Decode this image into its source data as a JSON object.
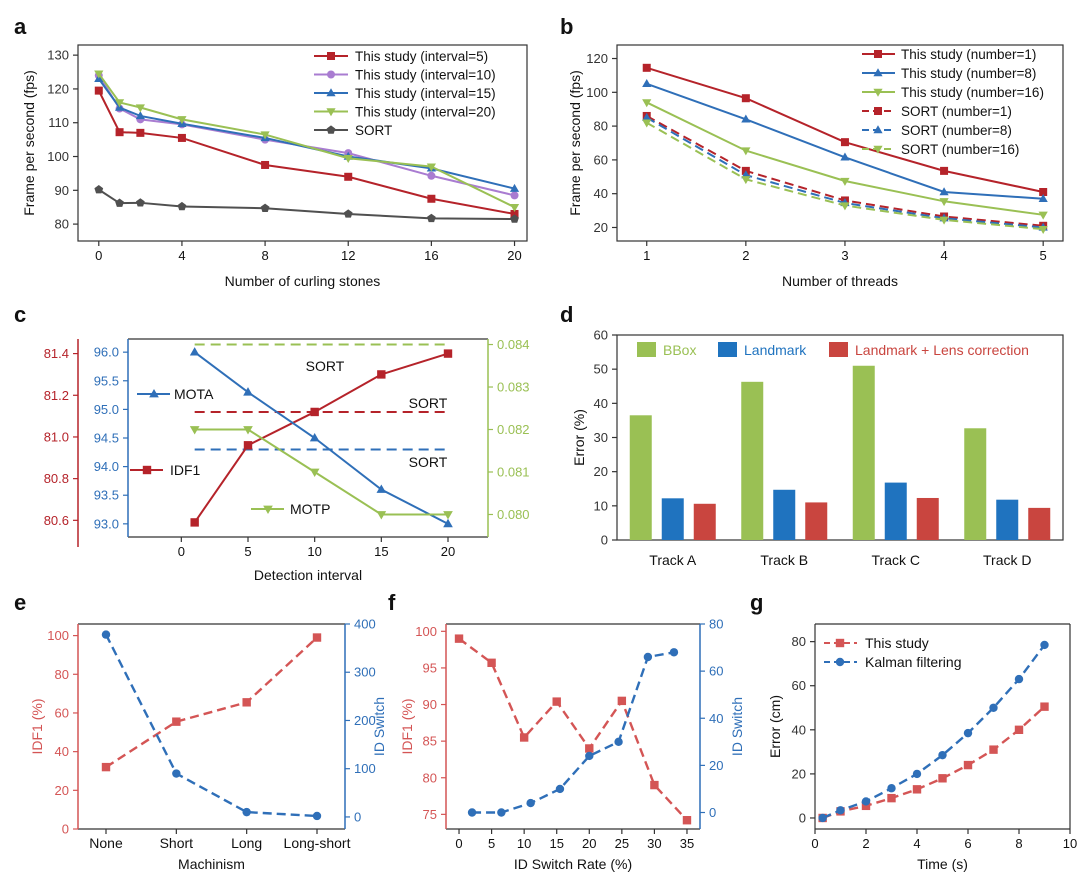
{
  "chart_data": [
    {
      "panel": "a",
      "type": "line",
      "xlabel": "Number of curling stones",
      "ylabel": "Frame per second (fps)",
      "xlim": [
        -1,
        20.6
      ],
      "ylim": [
        75,
        133
      ],
      "xticks": [
        0,
        4,
        8,
        12,
        16,
        20
      ],
      "yticks": [
        80,
        90,
        100,
        110,
        120,
        130
      ],
      "legend": "top-right",
      "series": [
        {
          "name": "This study (interval=5)",
          "color": "#b5232a",
          "marker": "square",
          "dash": false,
          "x": [
            0,
            1,
            2,
            4,
            8,
            12,
            16,
            20
          ],
          "y": [
            119.5,
            107.2,
            107.0,
            105.5,
            97.5,
            94.0,
            87.5,
            83.0
          ]
        },
        {
          "name": "This study (interval=10)",
          "color": "#a97cd1",
          "marker": "circle",
          "dash": false,
          "x": [
            0,
            1,
            2,
            4,
            8,
            12,
            16,
            20
          ],
          "y": [
            124.0,
            114.2,
            111.0,
            109.5,
            105.0,
            101.0,
            94.3,
            88.5
          ]
        },
        {
          "name": "This study (interval=15)",
          "color": "#2f6fb8",
          "marker": "triangle-up",
          "dash": false,
          "x": [
            0,
            1,
            2,
            4,
            8,
            12,
            16,
            20
          ],
          "y": [
            123.0,
            114.5,
            112.0,
            109.7,
            105.5,
            100.0,
            96.5,
            90.5
          ]
        },
        {
          "name": "This study (interval=20)",
          "color": "#9ac054",
          "marker": "triangle-down",
          "dash": false,
          "x": [
            0,
            1,
            2,
            4,
            8,
            12,
            16,
            20
          ],
          "y": [
            124.5,
            116.0,
            114.5,
            111.0,
            106.5,
            99.5,
            97.0,
            85.0
          ]
        },
        {
          "name": "SORT",
          "color": "#505050",
          "marker": "pentagon",
          "dash": false,
          "x": [
            0,
            1,
            2,
            4,
            8,
            12,
            16,
            20
          ],
          "y": [
            90.2,
            86.2,
            86.3,
            85.2,
            84.7,
            83.0,
            81.7,
            81.5
          ]
        }
      ]
    },
    {
      "panel": "b",
      "type": "line",
      "xlabel": "Number of threads",
      "ylabel": "Frame per second (fps)",
      "xlim": [
        0.7,
        5.2
      ],
      "ylim": [
        12,
        128
      ],
      "xticks": [
        1,
        2,
        3,
        4,
        5
      ],
      "yticks": [
        20,
        40,
        60,
        80,
        100,
        120
      ],
      "legend": "top-right",
      "series": [
        {
          "name": "This study (number=1)",
          "color": "#b5232a",
          "marker": "square",
          "dash": false,
          "x": [
            1,
            2,
            3,
            4,
            5
          ],
          "y": [
            114.5,
            96.5,
            70.5,
            53.5,
            41.0
          ]
        },
        {
          "name": "This study (number=8)",
          "color": "#2f6fb8",
          "marker": "triangle-up",
          "dash": false,
          "x": [
            1,
            2,
            3,
            4,
            5
          ],
          "y": [
            105.0,
            84.0,
            61.5,
            41.0,
            37.0
          ]
        },
        {
          "name": "This study (number=16)",
          "color": "#9ac054",
          "marker": "triangle-down",
          "dash": false,
          "x": [
            1,
            2,
            3,
            4,
            5
          ],
          "y": [
            94.0,
            65.5,
            47.5,
            35.5,
            27.5
          ]
        },
        {
          "name": "SORT (number=1)",
          "color": "#b5232a",
          "marker": "square",
          "dash": true,
          "x": [
            1,
            2,
            3,
            4,
            5
          ],
          "y": [
            86.0,
            53.5,
            36.0,
            26.5,
            21.0
          ]
        },
        {
          "name": "SORT (number=8)",
          "color": "#2f6fb8",
          "marker": "triangle-up",
          "dash": true,
          "x": [
            1,
            2,
            3,
            4,
            5
          ],
          "y": [
            85.0,
            51.0,
            34.5,
            25.5,
            20.0
          ]
        },
        {
          "name": "SORT (number=16)",
          "color": "#9ac054",
          "marker": "triangle-down",
          "dash": true,
          "x": [
            1,
            2,
            3,
            4,
            5
          ],
          "y": [
            82.0,
            48.5,
            33.0,
            24.5,
            19.0
          ]
        }
      ]
    },
    {
      "panel": "c",
      "type": "line",
      "xlabel": "Detection interval",
      "xlim": [
        -4,
        23
      ],
      "xticks": [
        0,
        5,
        10,
        15,
        20
      ],
      "axes": {
        "idf1": {
          "color": "#b5232a",
          "ylim": [
            80.52,
            81.47
          ],
          "yticks": [
            80.6,
            80.8,
            81.0,
            81.2,
            81.4
          ]
        },
        "mota": {
          "color": "#2f6fb8",
          "ylim": [
            92.77,
            96.23
          ],
          "yticks": [
            93.0,
            93.5,
            94.0,
            94.5,
            95.0,
            95.5,
            96.0
          ]
        },
        "motp": {
          "color": "#9ac054",
          "ylim": [
            0.07947,
            0.08413
          ],
          "yticks": [
            0.08,
            0.081,
            0.082,
            0.083,
            0.084
          ]
        }
      },
      "series": [
        {
          "name": "IDF1",
          "axis": "idf1",
          "color": "#b5232a",
          "marker": "square",
          "x": [
            1,
            5,
            10,
            15,
            20
          ],
          "y": [
            80.59,
            80.96,
            81.12,
            81.3,
            81.4
          ]
        },
        {
          "name": "MOTA",
          "axis": "mota",
          "color": "#2f6fb8",
          "marker": "triangle-up",
          "x": [
            1,
            5,
            10,
            15,
            20
          ],
          "y": [
            96.0,
            95.3,
            94.5,
            93.6,
            93.0
          ]
        },
        {
          "name": "MOTP",
          "axis": "motp",
          "color": "#9ac054",
          "marker": "triangle-down",
          "x": [
            1,
            5,
            10,
            15,
            20
          ],
          "y": [
            0.082,
            0.082,
            0.081,
            0.08,
            0.08
          ]
        }
      ],
      "reference_lines": [
        {
          "label": "SORT",
          "axis": "motp",
          "value": 0.084,
          "color": "#9ac054"
        },
        {
          "label": "SORT",
          "axis": "idf1",
          "value": 81.12,
          "color": "#b5232a"
        },
        {
          "label": "SORT",
          "axis": "mota",
          "value": 94.3,
          "color": "#2f6fb8"
        }
      ]
    },
    {
      "panel": "d",
      "type": "bar",
      "ylabel": "Error (%)",
      "ylim": [
        0,
        60
      ],
      "yticks": [
        0,
        10,
        20,
        30,
        40,
        50,
        60
      ],
      "categories": [
        "Track A",
        "Track B",
        "Track C",
        "Track D"
      ],
      "legend": "top",
      "series": [
        {
          "name": "BBox",
          "color": "#9ac054",
          "values": [
            36.5,
            46.3,
            51.0,
            32.7
          ]
        },
        {
          "name": "Landmark",
          "color": "#1f73bf",
          "values": [
            12.2,
            14.7,
            16.8,
            11.8
          ]
        },
        {
          "name": "Landmark + Lens correction",
          "color": "#c9453f",
          "values": [
            10.6,
            11.0,
            12.3,
            9.4
          ]
        }
      ]
    },
    {
      "panel": "e",
      "type": "line",
      "xlabel": "Machinism",
      "categories": [
        "None",
        "Short",
        "Long",
        "Long-short"
      ],
      "left_axis": {
        "label": "IDF1 (%)",
        "color": "#d45555",
        "ylim": [
          0,
          106
        ],
        "yticks": [
          0,
          20,
          40,
          60,
          80,
          100
        ]
      },
      "right_axis": {
        "label": "ID Switch",
        "color": "#2f6fb8",
        "ylim": [
          -25,
          400
        ],
        "yticks": [
          0,
          100,
          200,
          300,
          400
        ]
      },
      "series": [
        {
          "name": "IDF1",
          "axis": "left",
          "color": "#d45555",
          "marker": "square",
          "dash": true,
          "values": [
            32,
            55.5,
            65.5,
            99
          ]
        },
        {
          "name": "ID Switch",
          "axis": "right",
          "color": "#2f6fb8",
          "marker": "circle",
          "dash": true,
          "values": [
            378,
            90,
            10,
            2
          ]
        }
      ]
    },
    {
      "panel": "f",
      "type": "line",
      "xlabel": "ID Switch Rate (%)",
      "xlim": [
        -2,
        37
      ],
      "xticks": [
        0,
        5,
        10,
        15,
        20,
        25,
        30,
        35
      ],
      "left_axis": {
        "label": "IDF1 (%)",
        "color": "#d45555",
        "ylim": [
          73,
          101
        ],
        "yticks": [
          75,
          80,
          85,
          90,
          95,
          100
        ]
      },
      "right_axis": {
        "label": "ID Switch",
        "color": "#2f6fb8",
        "ylim": [
          -7,
          80
        ],
        "yticks": [
          0,
          20,
          40,
          60,
          80
        ]
      },
      "series": [
        {
          "name": "IDF1",
          "axis": "left",
          "color": "#d45555",
          "marker": "square",
          "dash": true,
          "x": [
            0,
            5,
            10,
            15,
            20,
            25,
            30,
            35
          ],
          "y": [
            99,
            95.7,
            85.5,
            90.4,
            84.0,
            90.5,
            79.0,
            74.2
          ]
        },
        {
          "name": "ID Switch",
          "axis": "right",
          "color": "#2f6fb8",
          "marker": "circle",
          "dash": true,
          "x": [
            2,
            6.5,
            11,
            15.5,
            20,
            24.5,
            29,
            33
          ],
          "y": [
            0,
            0,
            4,
            10,
            24,
            30,
            66,
            68
          ]
        }
      ]
    },
    {
      "panel": "g",
      "type": "line",
      "xlabel": "Time (s)",
      "ylabel": "Error (cm)",
      "xlim": [
        0,
        10
      ],
      "ylim": [
        -5,
        88
      ],
      "xticks": [
        0,
        2,
        4,
        6,
        8,
        10
      ],
      "yticks": [
        0,
        20,
        40,
        60,
        80
      ],
      "legend": "top-left",
      "series": [
        {
          "name": "This study",
          "color": "#d45555",
          "marker": "square",
          "dash": true,
          "x": [
            0.3,
            1,
            2,
            3,
            4,
            5,
            6,
            7,
            8,
            9
          ],
          "y": [
            0,
            3,
            5.5,
            9,
            13,
            18,
            24,
            31,
            40,
            50.5
          ]
        },
        {
          "name": "Kalman filtering",
          "color": "#2f6fb8",
          "marker": "circle",
          "dash": true,
          "x": [
            0.3,
            1,
            2,
            3,
            4,
            5,
            6,
            7,
            8,
            9
          ],
          "y": [
            0,
            3.5,
            7.5,
            13.5,
            20,
            28.5,
            38.5,
            50,
            63,
            78.5
          ]
        }
      ]
    }
  ],
  "panel_letters": [
    "a",
    "b",
    "c",
    "d",
    "e",
    "f",
    "g"
  ],
  "tick_labels": {
    "a_x": [
      "0",
      "4",
      "8",
      "12",
      "16",
      "20"
    ],
    "a_y": [
      "80",
      "90",
      "100",
      "110",
      "120",
      "130"
    ],
    "b_x": [
      "1",
      "2",
      "3",
      "4",
      "5"
    ],
    "b_y": [
      "20",
      "40",
      "60",
      "80",
      "100",
      "120"
    ],
    "c_x": [
      "0",
      "5",
      "10",
      "15",
      "20"
    ],
    "c_idf1": [
      "80.6",
      "80.8",
      "81.0",
      "81.2",
      "81.4"
    ],
    "c_mota": [
      "93.0",
      "93.5",
      "94.0",
      "94.5",
      "95.0",
      "95.5",
      "96.0"
    ],
    "c_motp": [
      "0.080",
      "0.081",
      "0.082",
      "0.083",
      "0.084"
    ],
    "d_y": [
      "0",
      "10",
      "20",
      "30",
      "40",
      "50",
      "60"
    ],
    "e_left": [
      "0",
      "20",
      "40",
      "60",
      "80",
      "100"
    ],
    "e_right": [
      "0",
      "100",
      "200",
      "300",
      "400"
    ],
    "f_x": [
      "0",
      "5",
      "10",
      "15",
      "20",
      "25",
      "30",
      "35"
    ],
    "f_left": [
      "75",
      "80",
      "85",
      "90",
      "95",
      "100"
    ],
    "f_right": [
      "0",
      "20",
      "40",
      "60",
      "80"
    ],
    "g_x": [
      "0",
      "2",
      "4",
      "6",
      "8",
      "10"
    ],
    "g_y": [
      "0",
      "20",
      "40",
      "60",
      "80"
    ]
  },
  "panel_c_labels": {
    "mota": "MOTA",
    "idf1": "IDF1",
    "motp": "MOTP",
    "sort": "SORT"
  }
}
